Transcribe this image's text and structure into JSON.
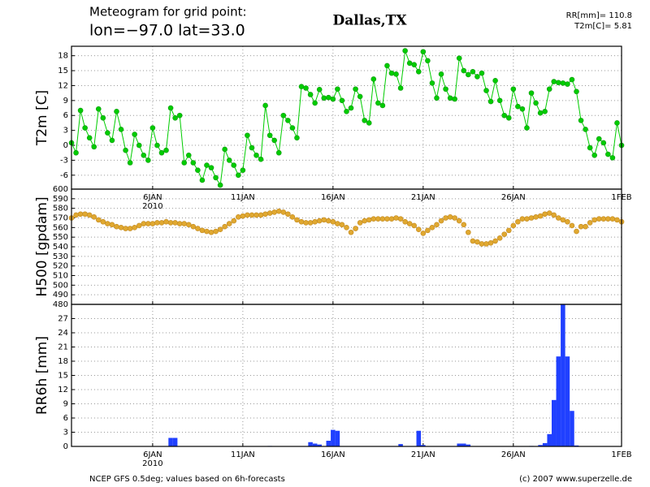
{
  "chart_data": {
    "type": "meteogram",
    "title_line1": "Meteogram for grid point:",
    "title_line2": "lon=−97.0  lat=33.0",
    "location": "Dallas,TX",
    "summary_rr": "RR[mm]= 110.8",
    "summary_t2m": "T2m[C]= 5.81",
    "footer_left": "NCEP GFS 0.5deg; values based on 6h-forecasts",
    "footer_right": "(c) 2007 www.superzelle.de",
    "year_label": "2010",
    "xlim": [
      0.5,
      31
    ],
    "xticks": [
      {
        "value": 5,
        "label": "6JAN"
      },
      {
        "value": 10,
        "label": "11JAN"
      },
      {
        "value": 15,
        "label": "16JAN"
      },
      {
        "value": 20,
        "label": "21JAN"
      },
      {
        "value": 25,
        "label": "26JAN"
      },
      {
        "value": 31,
        "label": "1FEB"
      }
    ],
    "grid": true,
    "x": [
      0.5,
      0.75,
      1,
      1.25,
      1.5,
      1.75,
      2,
      2.25,
      2.5,
      2.75,
      3,
      3.25,
      3.5,
      3.75,
      4,
      4.25,
      4.5,
      4.75,
      5,
      5.25,
      5.5,
      5.75,
      6,
      6.25,
      6.5,
      6.75,
      7,
      7.25,
      7.5,
      7.75,
      8,
      8.25,
      8.5,
      8.75,
      9,
      9.25,
      9.5,
      9.75,
      10,
      10.25,
      10.5,
      10.75,
      11,
      11.25,
      11.5,
      11.75,
      12,
      12.25,
      12.5,
      12.75,
      13,
      13.25,
      13.5,
      13.75,
      14,
      14.25,
      14.5,
      14.75,
      15,
      15.25,
      15.5,
      15.75,
      16,
      16.25,
      16.5,
      16.75,
      17,
      17.25,
      17.5,
      17.75,
      18,
      18.25,
      18.5,
      18.75,
      19,
      19.25,
      19.5,
      19.75,
      20,
      20.25,
      20.5,
      20.75,
      21,
      21.25,
      21.5,
      21.75,
      22,
      22.25,
      22.5,
      22.75,
      23,
      23.25,
      23.5,
      23.75,
      24,
      24.25,
      24.5,
      24.75,
      25,
      25.25,
      25.5,
      25.75,
      26,
      26.25,
      26.5,
      26.75,
      27,
      27.25,
      27.5,
      27.75,
      28,
      28.25,
      28.5,
      28.75,
      29,
      29.25,
      29.5,
      29.75,
      30,
      30.25,
      30.5,
      30.75,
      31
    ],
    "panels": [
      {
        "type": "line",
        "ylabel": "T2m [C]",
        "color": "#00cc00",
        "ylim": [
          -8.8,
          19.9
        ],
        "yticks": [
          -6,
          -3,
          0,
          3,
          6,
          9,
          12,
          15,
          18
        ],
        "values": [
          0.5,
          -1.5,
          7,
          3.5,
          1.5,
          -0.3,
          7.3,
          5.5,
          2.5,
          1,
          6.8,
          3.2,
          -1,
          -3.5,
          2.2,
          0,
          -2,
          -3,
          3.5,
          0,
          -1.5,
          -1,
          7.5,
          5.5,
          6,
          -3.5,
          -2,
          -3.5,
          -5,
          -7,
          -4,
          -4.5,
          -6.5,
          -8,
          -0.8,
          -3,
          -4,
          -6,
          -5,
          2,
          -0.5,
          -2,
          -2.8,
          8,
          2,
          1,
          -1.5,
          6,
          5,
          3.5,
          1.5,
          11.8,
          11.5,
          10.2,
          8.5,
          11.2,
          9.5,
          9.6,
          9.3,
          11.3,
          9,
          6.8,
          7.5,
          11.3,
          9.8,
          5,
          4.5,
          13.3,
          8.5,
          8,
          16,
          14.5,
          14.3,
          11.5,
          19,
          16.5,
          16.2,
          14.8,
          18.8,
          17,
          12.5,
          9.5,
          14.3,
          11.3,
          9.5,
          9.3,
          17.5,
          15,
          14.2,
          14.8,
          13.8,
          14.5,
          11,
          8.8,
          13,
          9,
          6,
          5.5,
          11.3,
          7.8,
          7.3,
          3.5,
          10.5,
          8.5,
          6.5,
          6.8,
          11.3,
          12.8,
          12.6,
          12.5,
          12.3,
          13.2,
          10.8,
          5,
          3.2,
          -0.5,
          -2,
          1.3,
          0.5,
          -1.8,
          -2.5,
          4.5,
          0
        ]
      },
      {
        "type": "scatter",
        "ylabel": "H500 [gpdam]",
        "color": "#e0a830",
        "ylim": [
          480,
          600
        ],
        "yticks": [
          480,
          490,
          500,
          510,
          520,
          530,
          540,
          550,
          560,
          570,
          580,
          590,
          600
        ],
        "values": [
          570,
          573,
          574,
          574,
          573,
          571,
          568,
          566,
          564,
          563,
          561,
          560,
          559,
          559,
          560,
          562,
          564,
          564,
          564,
          565,
          565,
          566,
          565,
          565,
          564,
          564,
          563,
          561,
          559,
          557,
          556,
          555,
          556,
          558,
          561,
          564,
          567,
          571,
          572,
          573,
          573,
          573,
          573,
          574,
          575,
          576,
          577,
          576,
          574,
          571,
          568,
          566,
          565,
          565,
          566,
          567,
          568,
          567,
          566,
          564,
          563,
          560,
          555,
          559,
          565,
          567,
          568,
          569,
          569,
          569,
          569,
          569,
          570,
          569,
          566,
          564,
          562,
          558,
          554,
          557,
          560,
          563,
          567,
          570,
          571,
          570,
          567,
          563,
          555,
          546,
          545,
          543,
          543,
          544,
          546,
          549,
          553,
          557,
          562,
          566,
          569,
          569,
          570,
          571,
          572,
          574,
          575,
          573,
          570,
          568,
          566,
          562,
          556,
          561,
          561,
          565,
          568,
          569,
          569,
          569,
          569,
          568,
          566
        ]
      },
      {
        "type": "bar",
        "ylabel": "RR6h [mm]",
        "color": "#2040ff",
        "ylim": [
          0,
          30
        ],
        "yticks": [
          0,
          3,
          6,
          9,
          12,
          15,
          18,
          21,
          24,
          27
        ],
        "values": [
          0,
          0,
          0,
          0,
          0,
          0,
          0,
          0,
          0,
          0,
          0,
          0,
          0,
          0,
          0,
          0,
          0,
          0,
          0,
          0,
          0,
          0,
          1.8,
          1.8,
          0,
          0,
          0,
          0,
          0,
          0,
          0,
          0,
          0,
          0,
          0,
          0,
          0,
          0,
          0,
          0,
          0,
          0,
          0,
          0,
          0.1,
          0,
          0,
          0,
          0,
          0,
          0,
          0,
          0,
          0.9,
          0.6,
          0.4,
          0,
          1.2,
          3.5,
          3.3,
          0,
          0,
          0,
          0,
          0,
          0,
          0,
          0,
          0,
          0,
          0,
          0,
          0,
          0.5,
          0,
          0,
          0,
          3.3,
          0.3,
          0,
          0,
          0,
          0,
          0,
          0,
          0,
          0.6,
          0.6,
          0.4,
          0,
          0,
          0,
          0,
          0,
          0,
          0,
          0,
          0,
          0,
          0,
          0,
          0,
          0.1,
          0,
          0.3,
          0.7,
          2.6,
          9.8,
          19,
          30,
          19,
          7.5,
          0.2,
          0,
          0,
          0,
          0,
          0,
          0,
          0,
          0,
          0,
          0
        ]
      }
    ]
  }
}
